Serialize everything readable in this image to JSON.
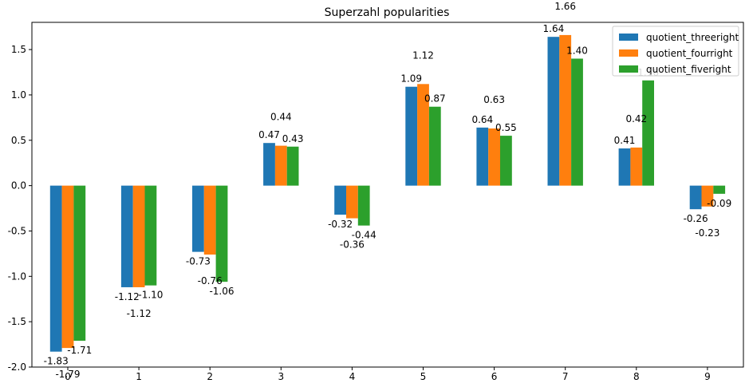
{
  "chart_data": {
    "type": "bar",
    "title": "Superzahl popularities",
    "xlabel": "",
    "ylabel": "",
    "categories": [
      "0",
      "1",
      "2",
      "3",
      "4",
      "5",
      "6",
      "7",
      "8",
      "9"
    ],
    "series": [
      {
        "name": "quotient_threeright",
        "color": "#1f77b4",
        "values": [
          -1.83,
          -1.12,
          -0.73,
          0.47,
          -0.32,
          1.09,
          0.64,
          1.64,
          0.41,
          -0.26
        ],
        "labels": [
          "-1.83",
          "-1.12",
          "-0.73",
          "0.47",
          "-0.32",
          "1.09",
          "0.64",
          "1.64",
          "0.41",
          "-0.26"
        ]
      },
      {
        "name": "quotient_fourright",
        "color": "#ff7f0e",
        "values": [
          -1.79,
          -1.12,
          -0.76,
          0.44,
          -0.36,
          1.12,
          0.63,
          1.66,
          0.42,
          -0.23
        ],
        "labels": [
          "-1.79",
          "-1.12",
          "-0.76",
          "0.44",
          "-0.36",
          "1.12",
          "0.63",
          "1.66",
          "0.42",
          "-0.23"
        ]
      },
      {
        "name": "quotient_fiveright",
        "color": "#2ca02c",
        "values": [
          -1.71,
          -1.1,
          -1.06,
          0.43,
          -0.44,
          0.87,
          0.55,
          1.4,
          1.16,
          -0.09
        ],
        "labels": [
          "-1.71",
          "-1.10",
          "-1.06",
          "0.43",
          "-0.44",
          "0.87",
          "0.55",
          "1.40",
          "1.16",
          "-0.09"
        ]
      }
    ],
    "ylim": [
      -2.0,
      1.8
    ],
    "yticks": [
      -2.0,
      -1.5,
      -1.0,
      -0.5,
      0.0,
      0.5,
      1.0,
      1.5
    ],
    "ytick_labels": [
      "-2.0",
      "-1.5",
      "-1.0",
      "-0.5",
      "0.0",
      "0.5",
      "1.0",
      "1.5"
    ],
    "grid": false,
    "legend_position": "top-right"
  }
}
